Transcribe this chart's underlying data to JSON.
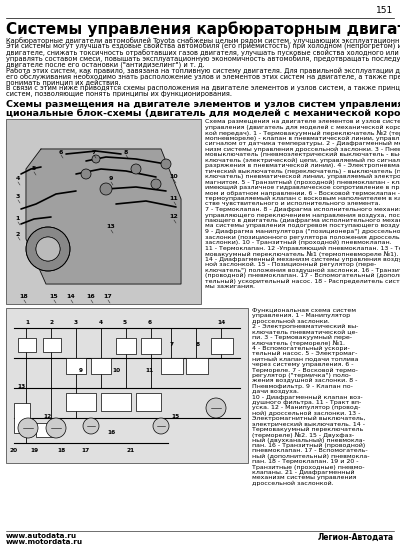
{
  "page_number": "151",
  "title": "Системы управления карбюраторным двигателем",
  "bg_color": "#ffffff",
  "text_color": "#000000",
  "footer_left_line1": "www.autodata.ru",
  "footer_left_line2": "www.motordata.ru",
  "footer_right": "Легион-Автодата",
  "body_lines": [
    "Карбюраторные двигатели автомобилей Toyota снабжены целым рядом систем, улучшающих эксплуатационные свойства автомобиля.",
    "Эти системы могут улучшать ездовые свойства автомобиля (его приемистость) при холодном (непрогретом) или горячем (прогретом)",
    "двигателе, снижать токсичность отработавших газов двигателя, улучшать пусковые свойства холодного или горячего двигателя,",
    "управлять составом смеси, повышать эксплуатационную экономичность автомобиля, предотвращать последующее воспламенение в",
    "двигателе после его остановки (\"антидизелинг\") и т. д.",
    "Работа этих систем, как правило, завязана на топливную систему двигателя. Для правильной эксплуатации двигателя и правильного",
    "его обслуживания необходимо знать расположение узлов и элементов этих систем на двигателе, а также представлять и правильно",
    "понимать принцип их действия.",
    "В связи с этим ниже приводятся схемы расположения на двигателе элементов и узлов систем, а также принципиальные схемы этих",
    "систем, позволяющие понять принципы их функционирования."
  ],
  "section_title_lines": [
    "Схемы размещения на двигателе элементов и узлов систем управления и их функ-",
    "циональные блок-схемы (двигатель для моделей с механической коробкой передач)"
  ],
  "diag1_caption_lines": [
    "Схема размещения на двигателе элементов и узлов систем",
    "управления (двигатель для моделей с механической короб-",
    "кой передач). 1 - Термовакуумный переключатель №2 (тер-",
    "мопневмореле) - клапан в пневматической линии, управляемый",
    "сигналом от датчика температуры. 2 - Диафрагменный меха-",
    "низм системы управления дроссельной заслонки. 3 - Пнев-",
    "мовыключатель (пневмоэлектрический выключатель - вы-",
    "ключатель (электрической) цепи, управляемый по сигналу",
    "разряжения в пневматической линии). 4 - Электропневма-",
    "тический выключатель (переключатель) - выключатель (пере-",
    "ключатель) пневматической линии, управляемый электро-",
    "магнитом. 5 - Транзитный (проходной) пневмоклапан - клапан,",
    "имеющий различное гидравлическое сопротивление в пря-",
    "мом и обратном направлении. 6 - Восковой термоклапан -",
    "термоуправляемый клапан с восковым наполнителем в каче-",
    "стве чувствительного и исполнительного элемента.",
    "7 - Термоклапан. 8 - Диафрагма исполнительного механизма,",
    "управляющего переключением направления воздуха, посту-",
    "пающего в двигатель (диафрагма исполнительного механиз-",
    "ма системы управления подогревом поступающего воздуха).",
    "9 - Диафрагма манипулятора (\"позиционера\") дроссельной",
    "заслонки (позиционного регулятора положения дроссельной",
    "заслонки). 10 - Транзитный (проходной) пневмоклапан.",
    "11 - Термоклапан. 12 -Управляющий пневмоклапан. 13 - Тер-",
    "мовакуумный переключатель №1 (термопневмореле №1).",
    "14 - Диафрагменный механизм системы управления воздуш-",
    "ной заслонкой. 15 - Позиционный регулятор (пере-",
    "ключатель\") положения воздушной заслонки. 16 - Транзитный",
    "(проводной) пневмоклапан. 17 - Вспомогательный (дополни-",
    "тельный) ускорительный насос. 18 - Распределитель систе-",
    "мы зажигания."
  ],
  "diag2_caption_lines": [
    "Функциональная схема систем",
    "управления. 1 - Манипулятор",
    "дроссельной заслонки.",
    "2 - Электропневматический вы-",
    "ключатель пневматической це-",
    "пи. 3 - Термовакуумный пере-",
    "ключатель (термореле) №1.",
    "4 - Вспомогательный ускори-",
    "тельный насос. 5 - Электромаг-",
    "нитный клапан подачи топлива",
    "через систему управления. 6 -",
    "Термореле. 7 - Восковой термо-",
    "регулятор (\"термичка\") поло-",
    "жения воздушной заслонки. 8 -",
    "Пневмофильтр. 9 - Клапан по-",
    "дачи воздуха.",
    "10 - Диафрагменный клапан воз-",
    "душного фильтра. 11 - Тракт вп-",
    "уска. 12 - Манипулятор (провод-",
    "ной) дроссельной заслонки. 13 -",
    "Электромагнитный выключатель,",
    "электрический выключатель. 14 -",
    "Термовакуумный переключатель",
    "(термореле) №2. 15 - Двухфаз-",
    "ный (двухканальный) пневмокла-",
    "пан. 16 - Транзитный (проводной)",
    "пневмоклапан. 17 - Вспомогатель-",
    "ный (дополнительный) пневмокла-",
    "пан. 18 - Термоклапан. 19 и 20 -",
    "Транзитные (проходные) пневмо-",
    "клапаны. 21 - Диафрагменный",
    "механизм системы управления",
    "дроссельной заслонкой."
  ]
}
